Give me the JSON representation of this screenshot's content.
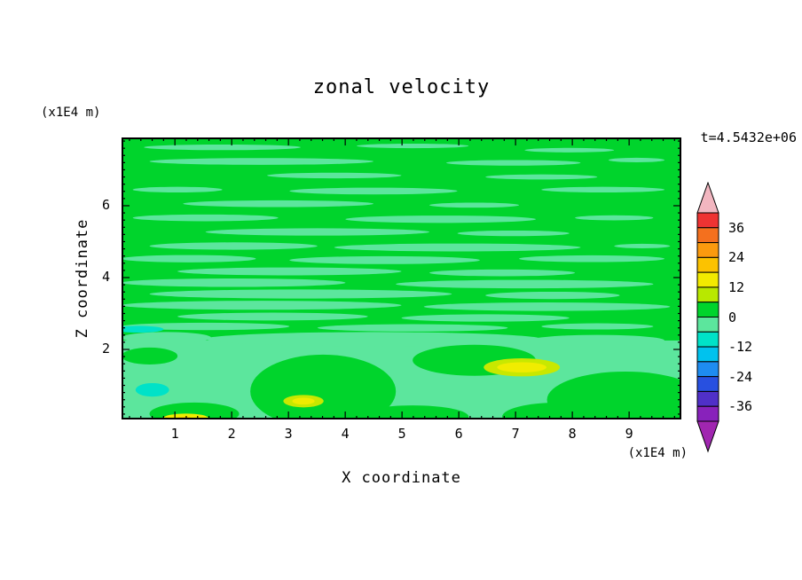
{
  "chart_data": {
    "type": "heatmap",
    "title": "zonal velocity",
    "xlabel": "X coordinate",
    "ylabel": "Z coordinate",
    "x_unit": "(x1E4 m)",
    "y_unit": "(x1E4 m)",
    "time_annotation": "t=4.5432e+06",
    "xlim": [
      0.06,
      9.92
    ],
    "ylim": [
      0.05,
      7.9
    ],
    "x_ticks": [
      1,
      2,
      3,
      4,
      5,
      6,
      7,
      8,
      9
    ],
    "y_ticks": [
      2,
      4,
      6
    ],
    "x_minor_step": 0.2,
    "y_minor_step": 0.2,
    "colorbar": {
      "levels": [
        42,
        36,
        30,
        24,
        18,
        12,
        6,
        0,
        -6,
        -12,
        -18,
        -24,
        -30,
        -36,
        -42
      ],
      "tick_labels": [
        "36",
        "24",
        "12",
        "0",
        "-12",
        "-24",
        "-36"
      ],
      "segment_colors_top_to_bottom": [
        "#ee3333",
        "#f4701e",
        "#fb9a0e",
        "#fcc200",
        "#f2ea00",
        "#b8e800",
        "#00d42c",
        "#5ce69d",
        "#00e2c8",
        "#00c2ee",
        "#1e8cf0",
        "#2850e0",
        "#5030c8",
        "#8822bb"
      ],
      "over_arrow_color": "#f2b6c0",
      "under_arrow_color": "#a026b0"
    },
    "field": {
      "description": "zonal velocity contour field; dominant values between -6 and 6, faint horizontal streak structure, weak positive (yellow) patches near the bottom boundary",
      "base_color": "#00d42c",
      "base_value_band": [
        0,
        6
      ],
      "streak_color": "#5ce69d",
      "streak_value_band": [
        -6,
        0
      ],
      "bottom_band_top_fraction": 0.72,
      "streaks": [
        [
          0.18,
          0.035,
          0.14,
          0.01
        ],
        [
          0.52,
          0.03,
          0.1,
          0.008
        ],
        [
          0.8,
          0.045,
          0.08,
          0.008
        ],
        [
          0.25,
          0.085,
          0.2,
          0.012
        ],
        [
          0.7,
          0.09,
          0.12,
          0.01
        ],
        [
          0.92,
          0.08,
          0.05,
          0.008
        ],
        [
          0.38,
          0.135,
          0.12,
          0.01
        ],
        [
          0.75,
          0.14,
          0.1,
          0.009
        ],
        [
          0.1,
          0.185,
          0.08,
          0.01
        ],
        [
          0.45,
          0.19,
          0.15,
          0.012
        ],
        [
          0.86,
          0.185,
          0.11,
          0.01
        ],
        [
          0.28,
          0.235,
          0.17,
          0.012
        ],
        [
          0.63,
          0.24,
          0.08,
          0.009
        ],
        [
          0.15,
          0.285,
          0.13,
          0.012
        ],
        [
          0.57,
          0.29,
          0.17,
          0.013
        ],
        [
          0.88,
          0.285,
          0.07,
          0.009
        ],
        [
          0.35,
          0.335,
          0.2,
          0.013
        ],
        [
          0.7,
          0.34,
          0.1,
          0.01
        ],
        [
          0.2,
          0.385,
          0.15,
          0.013
        ],
        [
          0.6,
          0.39,
          0.22,
          0.014
        ],
        [
          0.93,
          0.385,
          0.05,
          0.008
        ],
        [
          0.12,
          0.43,
          0.12,
          0.013
        ],
        [
          0.47,
          0.435,
          0.17,
          0.014
        ],
        [
          0.84,
          0.43,
          0.13,
          0.012
        ],
        [
          0.3,
          0.475,
          0.2,
          0.014
        ],
        [
          0.68,
          0.48,
          0.13,
          0.012
        ],
        [
          0.2,
          0.515,
          0.2,
          0.015
        ],
        [
          0.72,
          0.52,
          0.23,
          0.015
        ],
        [
          0.32,
          0.555,
          0.27,
          0.016
        ],
        [
          0.77,
          0.56,
          0.12,
          0.013
        ],
        [
          0.25,
          0.595,
          0.25,
          0.016
        ],
        [
          0.76,
          0.6,
          0.22,
          0.015
        ],
        [
          0.27,
          0.635,
          0.17,
          0.014
        ],
        [
          0.65,
          0.64,
          0.15,
          0.013
        ],
        [
          0.15,
          0.67,
          0.15,
          0.013
        ],
        [
          0.52,
          0.675,
          0.17,
          0.013
        ],
        [
          0.85,
          0.67,
          0.1,
          0.011
        ],
        [
          0.45,
          0.715,
          0.3,
          0.025
        ],
        [
          0.85,
          0.72,
          0.12,
          0.02
        ],
        [
          0.08,
          0.71,
          0.08,
          0.02
        ]
      ],
      "green_blobs": [
        [
          0.36,
          0.9,
          0.13,
          0.13
        ],
        [
          0.63,
          0.79,
          0.11,
          0.055
        ],
        [
          0.9,
          0.93,
          0.14,
          0.1
        ],
        [
          0.78,
          0.99,
          0.1,
          0.05
        ],
        [
          0.05,
          0.775,
          0.05,
          0.03
        ],
        [
          0.13,
          0.98,
          0.08,
          0.04
        ],
        [
          0.52,
          0.99,
          0.1,
          0.04
        ]
      ],
      "spots": [
        [
          0.715,
          0.815,
          0.068,
          0.032,
          "#c8e800"
        ],
        [
          0.715,
          0.815,
          0.044,
          0.018,
          "#f0ec00"
        ],
        [
          0.325,
          0.935,
          0.036,
          0.022,
          "#c8e800"
        ],
        [
          0.325,
          0.935,
          0.02,
          0.012,
          "#f0ec00"
        ],
        [
          0.115,
          0.995,
          0.04,
          0.016,
          "#f0ec00"
        ],
        [
          0.112,
          1.0,
          0.022,
          0.008,
          "#f8a800"
        ],
        [
          0.055,
          0.895,
          0.03,
          0.024,
          "#00e2c8"
        ],
        [
          0.03,
          0.68,
          0.045,
          0.012,
          "#00e2c8"
        ]
      ]
    }
  }
}
